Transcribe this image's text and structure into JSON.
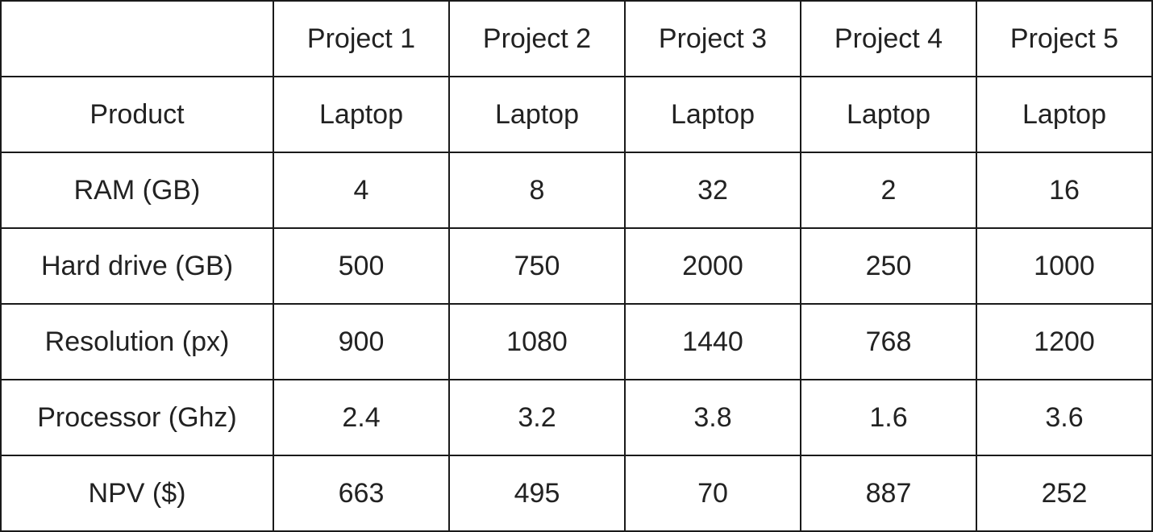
{
  "table": {
    "corner": "",
    "columns": [
      "Project 1",
      "Project 2",
      "Project 3",
      "Project 4",
      "Project 5"
    ],
    "rows": [
      {
        "label": "Product",
        "cells": [
          "Laptop",
          "Laptop",
          "Laptop",
          "Laptop",
          "Laptop"
        ]
      },
      {
        "label": "RAM (GB)",
        "cells": [
          "4",
          "8",
          "32",
          "2",
          "16"
        ]
      },
      {
        "label": "Hard drive (GB)",
        "cells": [
          "500",
          "750",
          "2000",
          "250",
          "1000"
        ]
      },
      {
        "label": "Resolution (px)",
        "cells": [
          "900",
          "1080",
          "1440",
          "768",
          "1200"
        ]
      },
      {
        "label": "Processor (Ghz)",
        "cells": [
          "2.4",
          "3.2",
          "3.8",
          "1.6",
          "3.6"
        ]
      },
      {
        "label": "NPV ($)",
        "cells": [
          "663",
          "495",
          "70",
          "887",
          "252"
        ]
      }
    ]
  }
}
